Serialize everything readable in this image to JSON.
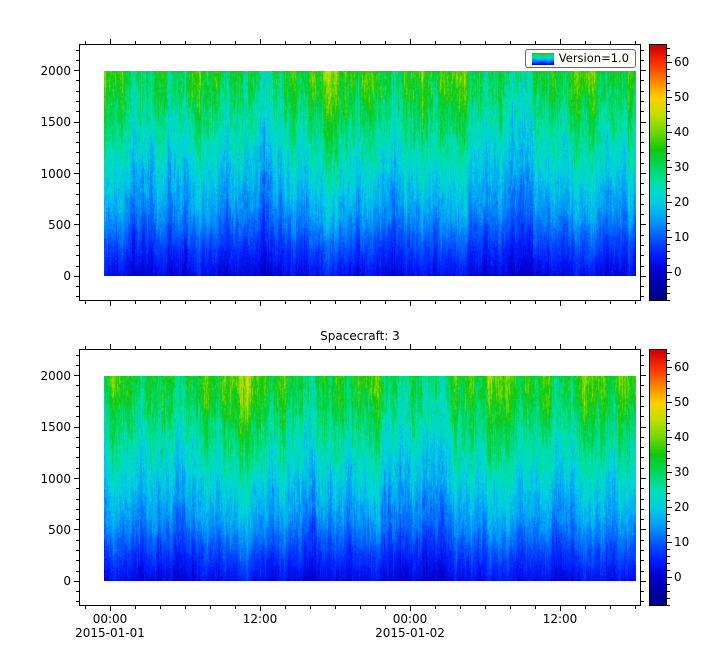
{
  "title_bottom_plot": "Spacecraft: 3",
  "legend": {
    "label": "Version=1.0"
  },
  "colormap": {
    "name": "jet-like",
    "stops": [
      {
        "t": 0.0,
        "c": "#000080"
      },
      {
        "t": 0.11,
        "c": "#0000d0"
      },
      {
        "t": 0.18,
        "c": "#0020ff"
      },
      {
        "t": 0.25,
        "c": "#0060ff"
      },
      {
        "t": 0.315,
        "c": "#00a0f8"
      },
      {
        "t": 0.384,
        "c": "#00d0e0"
      },
      {
        "t": 0.452,
        "c": "#00e0b0"
      },
      {
        "t": 0.52,
        "c": "#00d860"
      },
      {
        "t": 0.59,
        "c": "#10c810"
      },
      {
        "t": 0.658,
        "c": "#70d800"
      },
      {
        "t": 0.726,
        "c": "#c0e000"
      },
      {
        "t": 0.795,
        "c": "#ffd000"
      },
      {
        "t": 0.863,
        "c": "#ff8000"
      },
      {
        "t": 0.93,
        "c": "#ff3000"
      },
      {
        "t": 1.0,
        "c": "#cc0000"
      }
    ]
  },
  "chart_data": {
    "type": "heatmap",
    "description": "Two stacked time-vs-altitude spectrograms with jet-style colorbars; values low (dark blue) near altitude 0 rising to green/yellow near altitude 2000",
    "subplots": [
      {
        "name": "top",
        "title": "",
        "legend": "Version=1.0",
        "seed": 20150101
      },
      {
        "name": "bottom",
        "title": "Spacecraft: 3",
        "legend": null,
        "seed": 20150102
      }
    ],
    "x_axis": {
      "epoch": "2015-01-01 00:00",
      "range_hours": [
        -2.4,
        42.4
      ],
      "data_range_hours": [
        -0.5,
        42.1
      ],
      "minor_step_hours": 2,
      "major_ticks": [
        {
          "hours": 0,
          "label": "00:00",
          "date": "2015-01-01"
        },
        {
          "hours": 12,
          "label": "12:00"
        },
        {
          "hours": 24,
          "label": "00:00",
          "date": "2015-01-02"
        },
        {
          "hours": 36,
          "label": "12:00"
        }
      ]
    },
    "y_axis": {
      "range": [
        -230,
        2250
      ],
      "data_range": [
        0,
        2000
      ],
      "major_ticks": [
        0,
        500,
        1000,
        1500,
        2000
      ],
      "minor_step": 100
    },
    "z_axis": {
      "range": [
        -8,
        65
      ],
      "colorbar_major_ticks": [
        0,
        10,
        20,
        30,
        40,
        50,
        60
      ],
      "colorbar_minor_step": 2
    },
    "value_profile": {
      "altitudes": [
        0,
        200,
        400,
        600,
        800,
        1000,
        1200,
        1400,
        1600,
        1800,
        2000
      ],
      "values": [
        2,
        6,
        10,
        14,
        17,
        20,
        23,
        26,
        29,
        32,
        34
      ]
    },
    "noise": {
      "column_amp_base": 3.0,
      "column_amp_alt": 5.5,
      "walk_amp_base": 1.1,
      "walk_amp_alt": 2.2
    }
  }
}
